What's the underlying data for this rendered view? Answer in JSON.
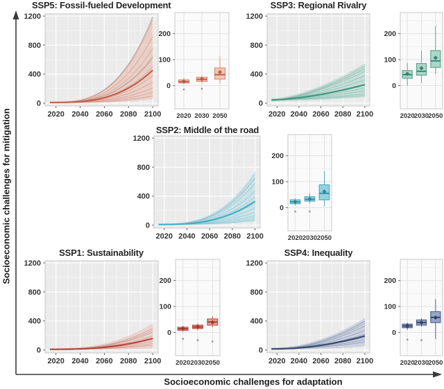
{
  "figure": {
    "y_axis_label": "Socioeconomic challenges for mitigation",
    "x_axis_label": "Socioeconomic challenges for adaptation"
  },
  "chart_data": [
    {
      "id": "ssp5",
      "title": "SSP5: Fossil-fueled Development",
      "colors": {
        "main": "#c2604c",
        "thin": "#d68e7b",
        "gray": "#a8a09c",
        "band": "#e7b3a2",
        "box_fill": "#f3c5b4",
        "box_edge": "#d88a70",
        "median": "#b85440",
        "mean": "#b85440",
        "outlier": "#8d8d8d"
      },
      "line_chart": {
        "type": "line",
        "x_range": [
          2015,
          2100
        ],
        "x_ticks": [
          2020,
          2040,
          2060,
          2080,
          2100
        ],
        "y_ticks": [
          0,
          400,
          800,
          1200
        ],
        "ylim": [
          -40,
          1230
        ],
        "start": 10,
        "main_end": 455,
        "band_upper_start": 20,
        "band_upper_end": 1200,
        "band_lower_start": 2,
        "band_lower_end": 60,
        "thin_ends": [
          1150,
          920,
          750,
          620,
          500,
          380,
          290,
          210,
          150,
          100
        ],
        "gray_ends": [
          1190,
          640
        ],
        "curve_power": 3.0
      },
      "boxplot": {
        "type": "boxplot",
        "categories": [
          "2020",
          "2030",
          "2050"
        ],
        "y_ticks": [
          0,
          100,
          200
        ],
        "ylim": [
          -90,
          282
        ],
        "boxes": [
          {
            "whislo": 5,
            "q1": 10,
            "med": 15,
            "q3": 22,
            "whishi": 30,
            "mean": 16,
            "outliers": [
              -15
            ]
          },
          {
            "whislo": 8,
            "q1": 16,
            "med": 24,
            "q3": 32,
            "whishi": 40,
            "mean": 25,
            "outliers": [
              -12
            ]
          },
          {
            "whislo": 8,
            "q1": 25,
            "med": 42,
            "q3": 68,
            "whishi": 112,
            "mean": 52,
            "outliers": []
          }
        ]
      }
    },
    {
      "id": "ssp3",
      "title": "SSP3: Regional Rivalry",
      "colors": {
        "main": "#3f9681",
        "thin": "#74b5a5",
        "gray": "#9aa8a2",
        "band": "#a2d1c2",
        "box_fill": "#a9d5c6",
        "box_edge": "#57a28e",
        "median": "#2e8571",
        "mean": "#2e7a67",
        "outlier": "#8d8d8d"
      },
      "line_chart": {
        "type": "line",
        "x_range": [
          2015,
          2100
        ],
        "x_ticks": [
          2020,
          2040,
          2060,
          2080,
          2100
        ],
        "y_ticks": [
          0,
          400,
          800,
          1200
        ],
        "ylim": [
          -40,
          1230
        ],
        "start": 45,
        "main_end": 255,
        "band_upper_start": 65,
        "band_upper_end": 545,
        "band_lower_start": 28,
        "band_lower_end": 85,
        "thin_ends": [
          510,
          440,
          380,
          320,
          260,
          210,
          170,
          130,
          105
        ],
        "gray_ends": [
          475
        ],
        "curve_power": 1.6
      },
      "boxplot": {
        "type": "boxplot",
        "categories": [
          "2020",
          "2030",
          "2050"
        ],
        "y_ticks": [
          0,
          100,
          200
        ],
        "ylim": [
          -90,
          282
        ],
        "boxes": [
          {
            "whislo": 0,
            "q1": 28,
            "med": 42,
            "q3": 58,
            "whishi": 88,
            "mean": 45,
            "outliers": []
          },
          {
            "whislo": 10,
            "q1": 40,
            "med": 55,
            "q3": 85,
            "whishi": 135,
            "mean": 67,
            "outliers": []
          },
          {
            "whislo": 45,
            "q1": 70,
            "med": 95,
            "q3": 135,
            "whishi": 230,
            "mean": 107,
            "outliers": []
          }
        ]
      }
    },
    {
      "id": "ssp2",
      "title": "SSP2: Middle of the road",
      "colors": {
        "main": "#45aec4",
        "thin": "#7cc5d4",
        "gray": "#a0aeb2",
        "band": "#aadbe5",
        "box_fill": "#8fd0de",
        "box_edge": "#4aa9bf",
        "median": "#2f8da3",
        "mean": "#2b7f93",
        "outlier": "#8d8d8d"
      },
      "line_chart": {
        "type": "line",
        "x_range": [
          2015,
          2100
        ],
        "x_ticks": [
          2020,
          2040,
          2060,
          2080,
          2100
        ],
        "y_ticks": [
          0,
          400,
          800,
          1200
        ],
        "ylim": [
          -40,
          1230
        ],
        "start": 10,
        "main_end": 330,
        "band_upper_start": 22,
        "band_upper_end": 745,
        "band_lower_start": 2,
        "band_lower_end": 55,
        "thin_ends": [
          700,
          580,
          470,
          390,
          310,
          240,
          180,
          130,
          95,
          70
        ],
        "gray_ends": [
          650
        ],
        "curve_power": 2.8
      },
      "boxplot": {
        "type": "boxplot",
        "categories": [
          "2020",
          "2030",
          "2050"
        ],
        "y_ticks": [
          0,
          100,
          200
        ],
        "ylim": [
          -90,
          282
        ],
        "boxes": [
          {
            "whislo": 8,
            "q1": 15,
            "med": 22,
            "q3": 30,
            "whishi": 36,
            "mean": 22,
            "outliers": [
              -15
            ]
          },
          {
            "whislo": 15,
            "q1": 25,
            "med": 32,
            "q3": 42,
            "whishi": 55,
            "mean": 33,
            "outliers": [
              -15
            ]
          },
          {
            "whislo": 5,
            "q1": 30,
            "med": 55,
            "q3": 88,
            "whishi": 140,
            "mean": 62,
            "outliers": []
          }
        ]
      }
    },
    {
      "id": "ssp1",
      "title": "SSP1: Sustainability",
      "colors": {
        "main": "#b5453c",
        "thin": "#d08071",
        "gray": "#aba3a0",
        "band": "#eabcb2",
        "box_fill": "#ec9a8b",
        "box_edge": "#c04a3d",
        "median": "#99352c",
        "mean": "#99352c",
        "outlier": "#8d8d8d"
      },
      "line_chart": {
        "type": "line",
        "x_range": [
          2015,
          2100
        ],
        "x_ticks": [
          2020,
          2040,
          2060,
          2080,
          2100
        ],
        "y_ticks": [
          0,
          400,
          800,
          1200
        ],
        "ylim": [
          -40,
          1230
        ],
        "start": 10,
        "main_end": 160,
        "band_upper_start": 22,
        "band_upper_end": 365,
        "band_lower_start": 2,
        "band_lower_end": 28,
        "thin_ends": [
          300,
          245,
          195,
          155,
          120,
          90,
          65
        ],
        "gray_ends": [
          270
        ],
        "curve_power": 2.6
      },
      "boxplot": {
        "type": "boxplot",
        "categories": [
          "2020",
          "2030",
          "2050"
        ],
        "y_ticks": [
          0,
          100,
          200
        ],
        "ylim": [
          -90,
          282
        ],
        "boxes": [
          {
            "whislo": 3,
            "q1": 8,
            "med": 14,
            "q3": 20,
            "whishi": 26,
            "mean": 15,
            "outliers": [
              -25
            ]
          },
          {
            "whislo": 8,
            "q1": 15,
            "med": 21,
            "q3": 28,
            "whishi": 34,
            "mean": 22,
            "outliers": [
              -30
            ]
          },
          {
            "whislo": 20,
            "q1": 28,
            "med": 40,
            "q3": 52,
            "whishi": 62,
            "mean": 39,
            "outliers": [
              -35
            ]
          }
        ]
      }
    },
    {
      "id": "ssp4",
      "title": "SSP4: Inequality",
      "colors": {
        "main": "#3a4a6e",
        "thin": "#7286ab",
        "gray": "#9ba1ad",
        "band": "#aeb9d0",
        "box_fill": "#93a3c4",
        "box_edge": "#465a88",
        "median": "#2e3d63",
        "mean": "#2e3d63",
        "outlier": "#8d8d8d"
      },
      "line_chart": {
        "type": "line",
        "x_range": [
          2015,
          2100
        ],
        "x_ticks": [
          2020,
          2040,
          2060,
          2080,
          2100
        ],
        "y_ticks": [
          0,
          400,
          800,
          1200
        ],
        "ylim": [
          -40,
          1230
        ],
        "start": 15,
        "main_end": 195,
        "band_upper_start": 30,
        "band_upper_end": 440,
        "band_lower_start": 5,
        "band_lower_end": 55,
        "thin_ends": [
          400,
          330,
          270,
          220,
          175,
          140,
          110
        ],
        "gray_ends": [
          370
        ],
        "curve_power": 2.0
      },
      "boxplot": {
        "type": "boxplot",
        "categories": [
          "2020",
          "2030",
          "2050"
        ],
        "y_ticks": [
          0,
          100,
          200
        ],
        "ylim": [
          -90,
          282
        ],
        "boxes": [
          {
            "whislo": 10,
            "q1": 18,
            "med": 25,
            "q3": 32,
            "whishi": 38,
            "mean": 25,
            "outliers": [
              -28
            ]
          },
          {
            "whislo": 22,
            "q1": 28,
            "med": 38,
            "q3": 48,
            "whishi": 55,
            "mean": 38,
            "outliers": [
              -30
            ]
          },
          {
            "whislo": -25,
            "q1": 38,
            "med": 58,
            "q3": 80,
            "whishi": 128,
            "mean": 57,
            "outliers": []
          }
        ]
      }
    }
  ]
}
